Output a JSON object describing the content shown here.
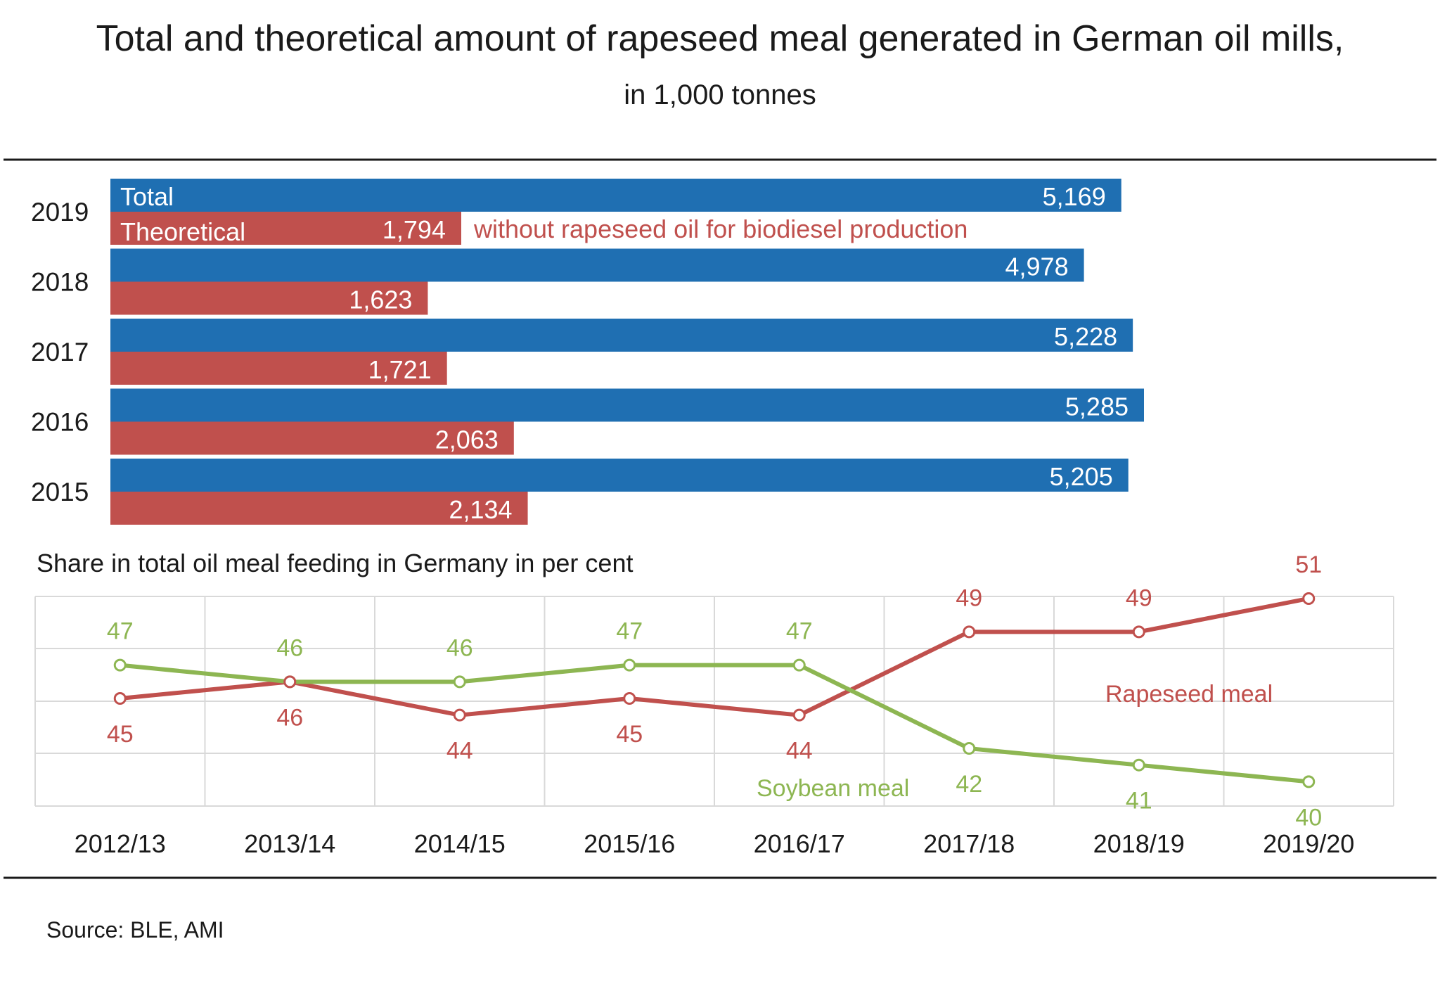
{
  "title": "Total and theoretical amount of rapeseed meal generated in German oil mills,",
  "subtitle": "in 1,000 tonnes",
  "source": "Source:  BLE, AMI",
  "colors": {
    "total": "#1f6fb2",
    "theoretical": "#c0504d",
    "rapeseed": "#c0504d",
    "soybean": "#8db652",
    "grid": "#d9d9d9",
    "rule": "#1a1a1a"
  },
  "chart_data": [
    {
      "type": "bar",
      "orientation": "horizontal",
      "categories": [
        "2019",
        "2018",
        "2017",
        "2016",
        "2015"
      ],
      "series": [
        {
          "name": "Total",
          "values": [
            5169,
            4978,
            5228,
            5285,
            5205
          ],
          "labels": [
            "5,169",
            "4,978",
            "5,228",
            "5,285",
            "5,205"
          ]
        },
        {
          "name": "Theoretical",
          "values": [
            1794,
            1623,
            1721,
            2063,
            2134
          ],
          "labels": [
            "1,794",
            "1,623",
            "1,721",
            "2,063",
            "2,134"
          ]
        }
      ],
      "annotation": "without rapeseed  oil for biodiesel  production",
      "grid": false
    },
    {
      "type": "line",
      "title": "Share in total oil meal feeding in Germany in per cent",
      "categories": [
        "2012/13",
        "2013/14",
        "2014/15",
        "2015/16",
        "2016/17",
        "2017/18",
        "2018/19",
        "2019/20"
      ],
      "series": [
        {
          "name": "Rapeseed  meal",
          "values": [
            45,
            46,
            44,
            45,
            44,
            49,
            49,
            51
          ],
          "labels": [
            "45",
            "46",
            "44",
            "45",
            "44",
            "49",
            "49",
            "51"
          ]
        },
        {
          "name": "Soybean  meal",
          "values": [
            47,
            46,
            46,
            47,
            47,
            42,
            41,
            40
          ],
          "labels": [
            "47",
            "46",
            "46",
            "47",
            "47",
            "42",
            "41",
            "40"
          ]
        }
      ],
      "grid": true
    }
  ]
}
